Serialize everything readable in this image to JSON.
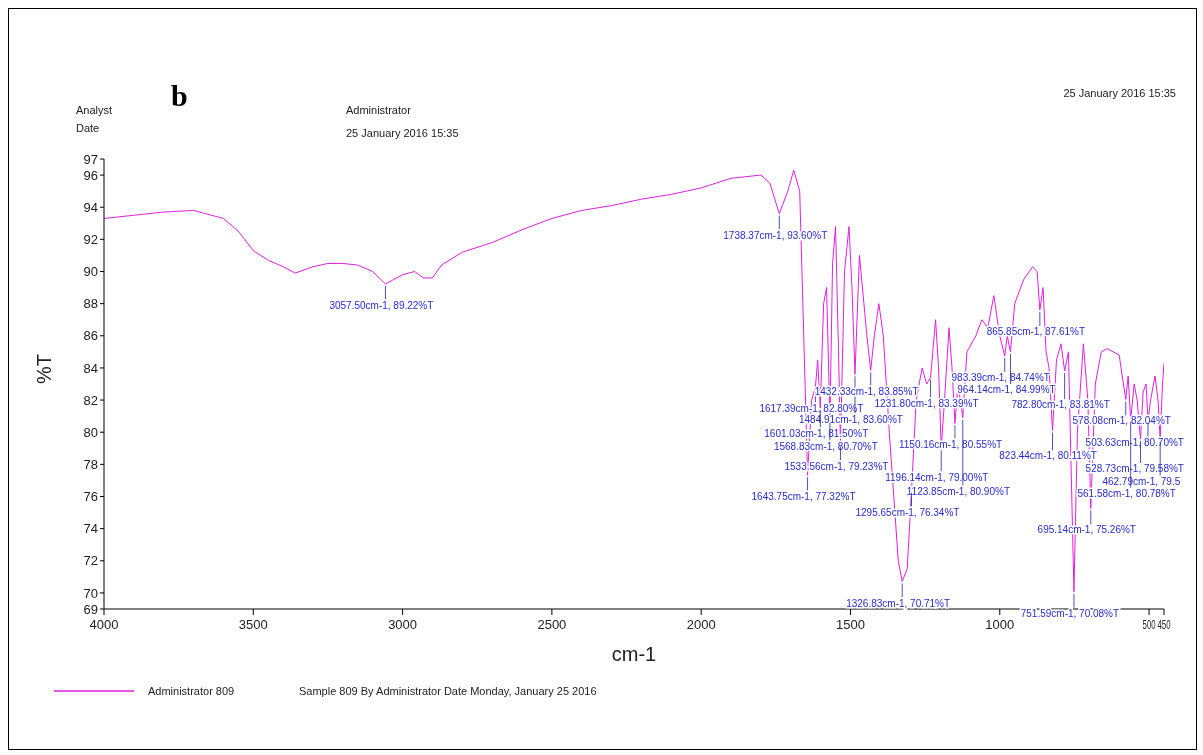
{
  "chart_data": {
    "type": "line",
    "title": "b",
    "xlabel": "cm-1",
    "ylabel": "%T",
    "xlim": [
      4000,
      450
    ],
    "xticks": [
      4000,
      3500,
      3000,
      2500,
      2000,
      1500,
      1000,
      500,
      450
    ],
    "ylim": [
      69,
      97
    ],
    "yticks": [
      69,
      70,
      72,
      74,
      76,
      78,
      80,
      82,
      84,
      86,
      88,
      90,
      92,
      94,
      96,
      97
    ],
    "grid": false,
    "legend": "bottom",
    "marker": "none",
    "line_style": "solid",
    "x": [
      4000,
      3900,
      3800,
      3700,
      3600,
      3550,
      3500,
      3450,
      3400,
      3360,
      3300,
      3250,
      3200,
      3150,
      3100,
      3057.5,
      3000,
      2960,
      2930,
      2900,
      2870,
      2800,
      2700,
      2600,
      2500,
      2400,
      2300,
      2200,
      2100,
      2000,
      1900,
      1800,
      1770,
      1738.37,
      1710,
      1690,
      1670,
      1655,
      1643.75,
      1630,
      1617.39,
      1610,
      1601.03,
      1590,
      1580,
      1568.83,
      1560,
      1550,
      1540,
      1533.56,
      1520,
      1505,
      1495,
      1484.91,
      1470,
      1455,
      1445,
      1432.33,
      1420,
      1405,
      1390,
      1370,
      1340,
      1326.83,
      1310,
      1295.65,
      1280,
      1260,
      1245,
      1231.8,
      1215,
      1205,
      1196.14,
      1185,
      1170,
      1160,
      1150.16,
      1140,
      1123.85,
      1110,
      1080,
      1060,
      1040,
      1020,
      1000,
      983.39,
      975,
      964.14,
      950,
      920,
      890,
      875,
      865.85,
      855,
      845,
      835,
      823.44,
      810,
      795,
      782.8,
      770,
      751.59,
      740,
      720,
      705,
      695.14,
      680,
      660,
      640,
      620,
      600,
      590,
      578.08,
      570,
      561.58,
      550,
      540,
      528.73,
      520,
      510,
      503.63,
      495,
      480,
      470,
      462.79,
      455,
      450
    ],
    "series": [
      {
        "name": "Administrator 809",
        "color": "#e020e0",
        "values": [
          93.3,
          93.5,
          93.7,
          93.8,
          93.3,
          92.5,
          91.3,
          90.7,
          90.3,
          89.9,
          90.3,
          90.5,
          90.5,
          90.4,
          90.0,
          89.22,
          89.8,
          90.0,
          89.6,
          89.6,
          90.4,
          91.2,
          91.8,
          92.6,
          93.3,
          93.8,
          94.1,
          94.5,
          94.8,
          95.2,
          95.8,
          96.0,
          95.5,
          93.6,
          95.0,
          96.3,
          95.0,
          85,
          77.32,
          82,
          82.8,
          84.5,
          81.5,
          88,
          89,
          80.7,
          90.5,
          92.8,
          85,
          79.23,
          90,
          92.8,
          89,
          83.6,
          91,
          88,
          86,
          83.85,
          86,
          88,
          86,
          80,
          72,
          70.71,
          71.5,
          76.34,
          82,
          84,
          83,
          83.39,
          87,
          84,
          79.0,
          82,
          86.5,
          84,
          80.55,
          83,
          80.9,
          85,
          86,
          87,
          86.5,
          88.5,
          86,
          84.74,
          86,
          84.99,
          88,
          89.5,
          90.3,
          90.0,
          87.61,
          89,
          85,
          84,
          80.11,
          84.5,
          85.5,
          83.81,
          85,
          70.08,
          80,
          85.5,
          82,
          75.26,
          83,
          85,
          85.2,
          85,
          84.8,
          83.5,
          82.04,
          83.5,
          80.78,
          83,
          82,
          79.58,
          82.5,
          83,
          80.7,
          82,
          83.5,
          82,
          79.5,
          83,
          84.3
        ]
      }
    ],
    "annotations": [
      "Analyst",
      "Date",
      "Administrator",
      "25 January 2016 15:35",
      "25 January 2016 15:35",
      "Sample 809 By Administrator Date Monday, January 25 2016",
      {
        "text": "3057.50cm-1, 89.22%T",
        "x": 3057.5,
        "y": 89.22
      },
      {
        "text": "1738.37cm-1, 93.60%T",
        "x": 1738.37,
        "y": 93.6
      },
      {
        "text": "865.85cm-1, 87.61%T",
        "x": 865.85,
        "y": 87.61
      },
      {
        "text": "983.39cm-1, 84.74%T",
        "x": 983.39,
        "y": 84.74
      },
      {
        "text": "964.14cm-1, 84.99%T",
        "x": 964.14,
        "y": 84.99
      },
      {
        "text": "1231.80cm-1, 83.39%T",
        "x": 1231.8,
        "y": 83.39
      },
      {
        "text": "782.80cm-1, 83.81%T",
        "x": 782.8,
        "y": 83.81
      },
      {
        "text": "1617.39cm-1, 82.80%T",
        "x": 1617.39,
        "y": 82.8
      },
      {
        "text": "1484.91cm-1, 83.60%T",
        "x": 1484.91,
        "y": 83.6
      },
      {
        "text": "578.08cm-1, 82.04%T",
        "x": 578.08,
        "y": 82.04
      },
      {
        "text": "1601.03cm-1, 81.50%T",
        "x": 1601.03,
        "y": 81.5
      },
      {
        "text": "1568.83cm-1, 80.70%T",
        "x": 1568.83,
        "y": 80.7
      },
      {
        "text": "1150.16cm-1, 80.55%T",
        "x": 1150.16,
        "y": 80.55
      },
      {
        "text": "503.63cm-1, 80.70%T",
        "x": 503.63,
        "y": 80.7
      },
      {
        "text": "823.44cm-1, 80.11%T",
        "x": 823.44,
        "y": 80.11
      },
      {
        "text": "1432.33cm-1, 83.85%T",
        "x": 1432.33,
        "y": 83.85
      },
      {
        "text": "528.73cm-1, 79.58%T",
        "x": 528.73,
        "y": 79.58
      },
      {
        "text": "1533.56cm-1, 79.23%T",
        "x": 1533.56,
        "y": 79.23
      },
      {
        "text": "462.79cm-1, 79.5",
        "x": 462.79,
        "y": 79.5
      },
      {
        "text": "1196.14cm-1, 79.00%T",
        "x": 1196.14,
        "y": 79.0
      },
      {
        "text": "1123.85cm-1, 80.90%T",
        "x": 1123.85,
        "y": 80.9
      },
      {
        "text": "561.58cm-1, 80.78%T",
        "x": 561.58,
        "y": 80.78
      },
      {
        "text": "1643.75cm-1, 77.32%T",
        "x": 1643.75,
        "y": 77.32
      },
      {
        "text": "1295.65cm-1, 76.34%T",
        "x": 1295.65,
        "y": 76.34
      },
      {
        "text": "695.14cm-1, 75.26%T",
        "x": 695.14,
        "y": 75.26
      },
      {
        "text": "1326.83cm-1, 70.71%T",
        "x": 1326.83,
        "y": 70.71
      },
      {
        "text": "751.59cm-1, 70.08%T",
        "x": 751.59,
        "y": 70.08
      }
    ]
  }
}
